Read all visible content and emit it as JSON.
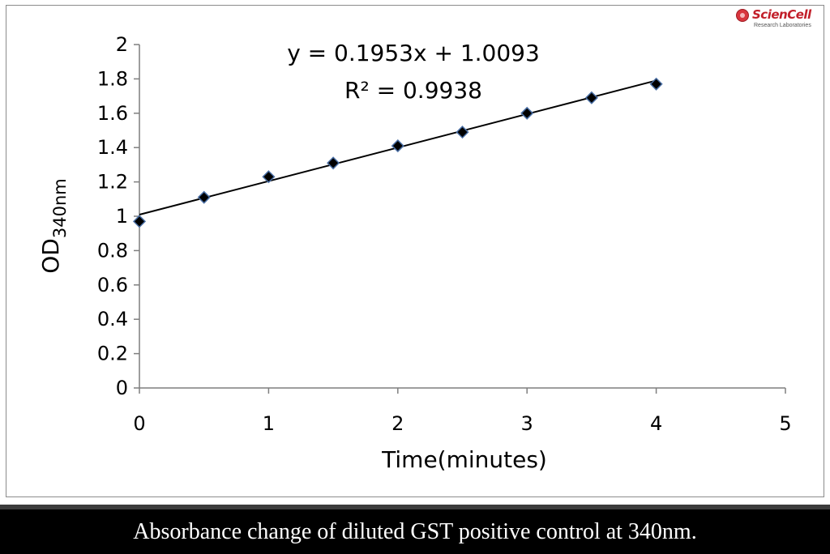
{
  "logo": {
    "name": "ScienCell",
    "subtitle": "Research Laboratories",
    "color": "#c21f2a"
  },
  "caption": "Absorbance change of diluted GST positive control at 340nm.",
  "chart_data": {
    "type": "scatter",
    "title": "",
    "xlabel": "Time(minutes)",
    "ylabel_main": "OD",
    "ylabel_sub": "340nm",
    "xlim": [
      0,
      5
    ],
    "ylim": [
      0,
      2
    ],
    "x_ticks": [
      "0",
      "1",
      "2",
      "3",
      "4",
      "5"
    ],
    "y_ticks": [
      "0",
      "0.2",
      "0.4",
      "0.6",
      "0.8",
      "1",
      "1.2",
      "1.4",
      "1.6",
      "1.8",
      "2"
    ],
    "grid": false,
    "legend": "none",
    "series": [
      {
        "marker": "diamond",
        "color": "#000000",
        "marker_edge": "#4a6fa5",
        "x": [
          0,
          0.5,
          1,
          1.5,
          2,
          2.5,
          3,
          3.5,
          4
        ],
        "y": [
          0.97,
          1.11,
          1.23,
          1.31,
          1.41,
          1.49,
          1.6,
          1.69,
          1.77
        ]
      }
    ],
    "trendline": {
      "slope": 0.1953,
      "intercept": 1.0093,
      "x_range": [
        0,
        4
      ],
      "color": "#000000",
      "equation": "y = 0.1953x + 1.0093",
      "r_squared": "R² = 0.9938"
    }
  }
}
